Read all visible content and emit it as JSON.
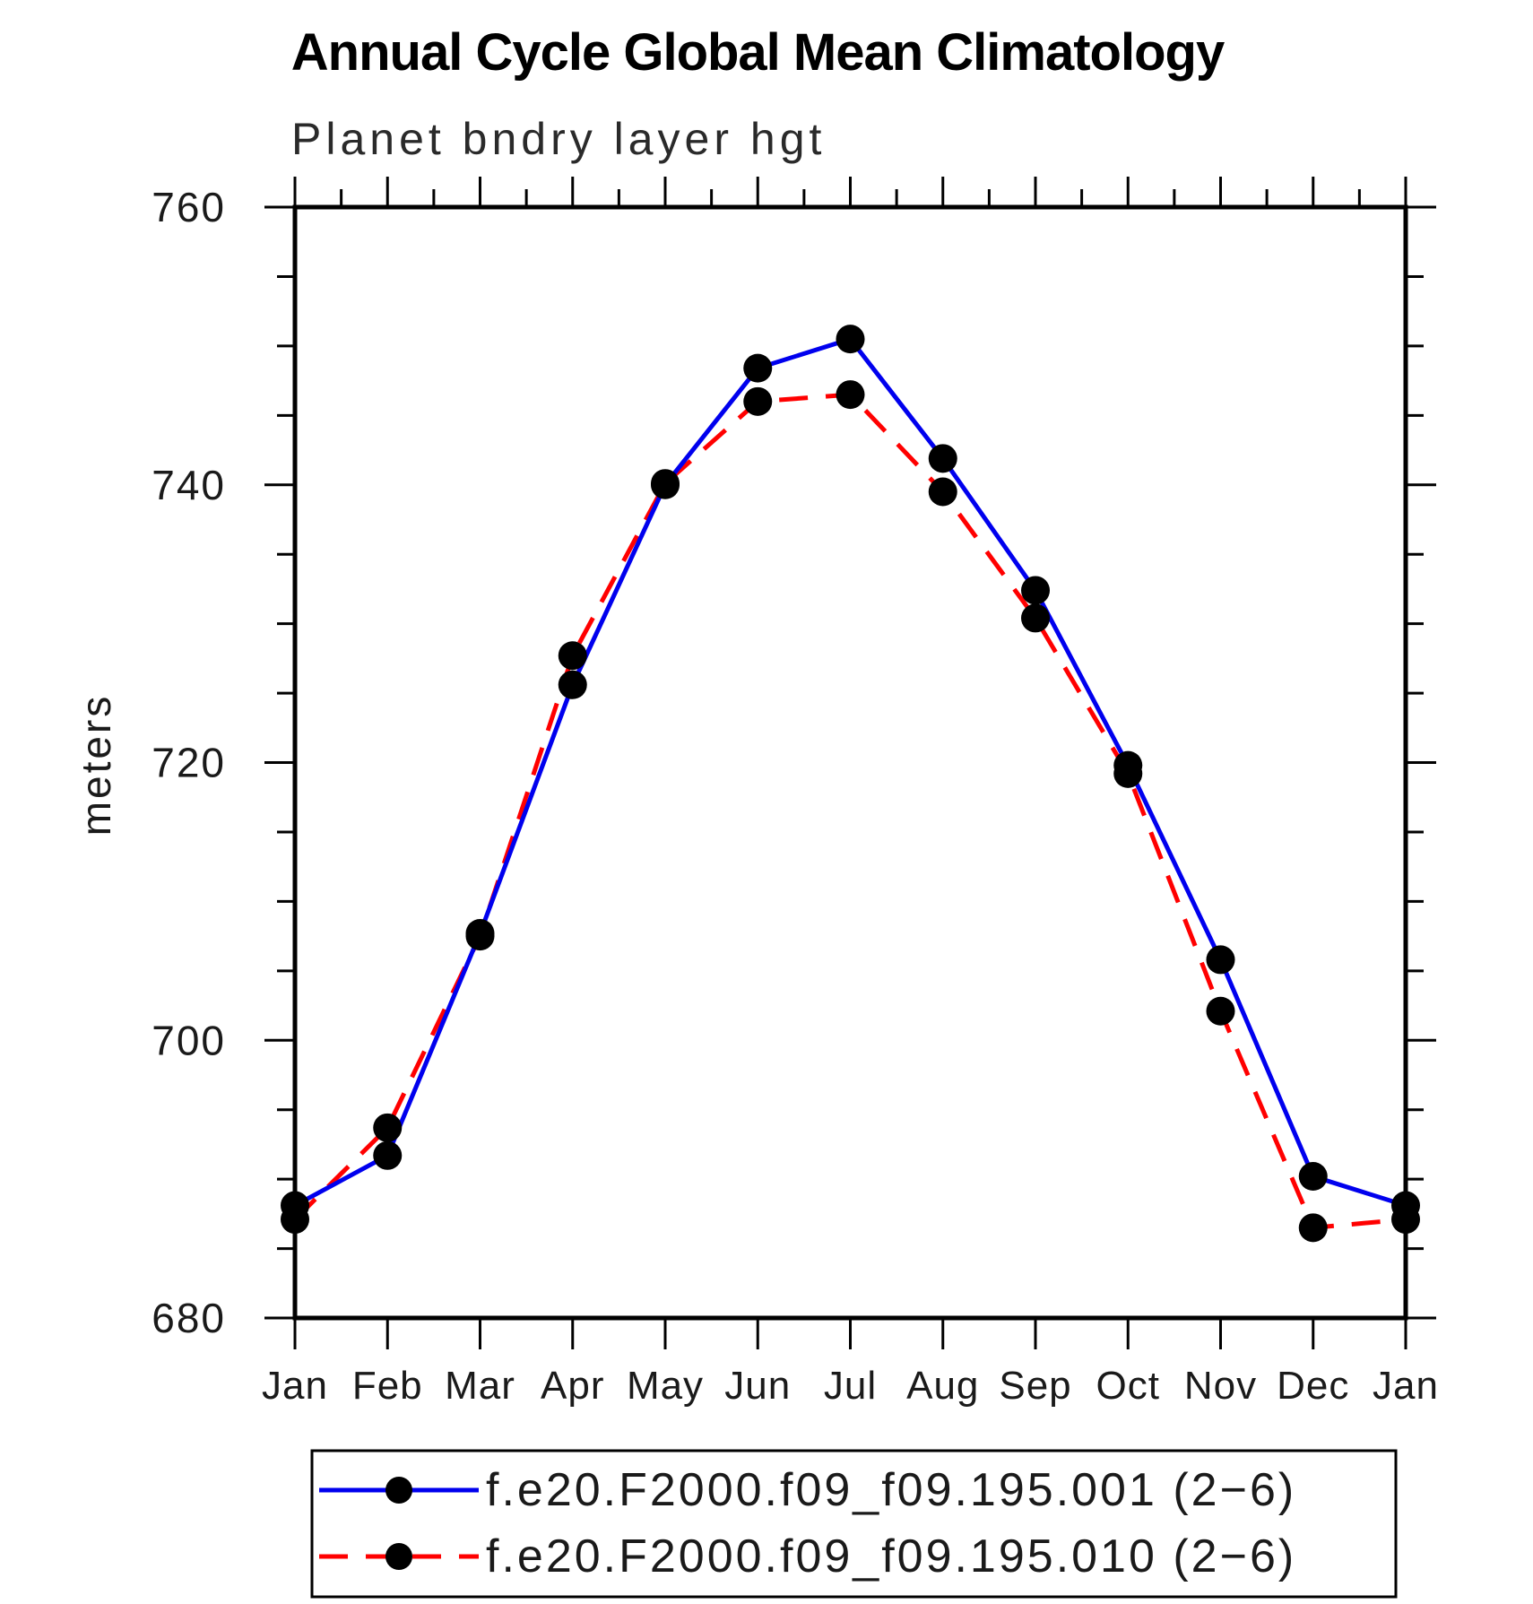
{
  "figure": {
    "title": "Annual Cycle Global Mean Climatology",
    "subtitle": "Planet bndry layer hgt",
    "background_color": "#ffffff",
    "frame_color": "#000000"
  },
  "chart_data": {
    "type": "line",
    "title": "Annual Cycle Global Mean Climatology",
    "subtitle": "Planet bndry layer hgt",
    "xlabel": "",
    "ylabel": "meters",
    "categories": [
      "Jan",
      "Feb",
      "Mar",
      "Apr",
      "May",
      "Jun",
      "Jul",
      "Aug",
      "Sep",
      "Oct",
      "Nov",
      "Dec",
      "Jan"
    ],
    "ylim": [
      680,
      760
    ],
    "ytick_major_interval": 20,
    "ytick_minor_interval": 5,
    "ytick_labels": [
      "680",
      "700",
      "720",
      "740",
      "760"
    ],
    "ytick_values": [
      680,
      700,
      720,
      740,
      760
    ],
    "xtick_minor_at_half_month_top": true,
    "grid": false,
    "legend_position": "bottom",
    "marker_color": "#000000",
    "series": [
      {
        "name": "f.e20.F2000.f09_f09.195.001 (2−6)",
        "color": "#0000ee",
        "style": "solid",
        "marker": "circle",
        "values": [
          688.1,
          691.7,
          707.7,
          725.6,
          740.0,
          748.4,
          750.5,
          741.9,
          732.4,
          719.8,
          705.8,
          690.2,
          688.1
        ]
      },
      {
        "name": "f.e20.F2000.f09_f09.195.010 (2−6)",
        "color": "#ff0000",
        "style": "dashed",
        "marker": "circle",
        "values": [
          687.1,
          693.7,
          707.5,
          727.7,
          740.1,
          746.0,
          746.5,
          739.5,
          730.4,
          719.2,
          702.1,
          686.5,
          687.1
        ]
      }
    ]
  }
}
